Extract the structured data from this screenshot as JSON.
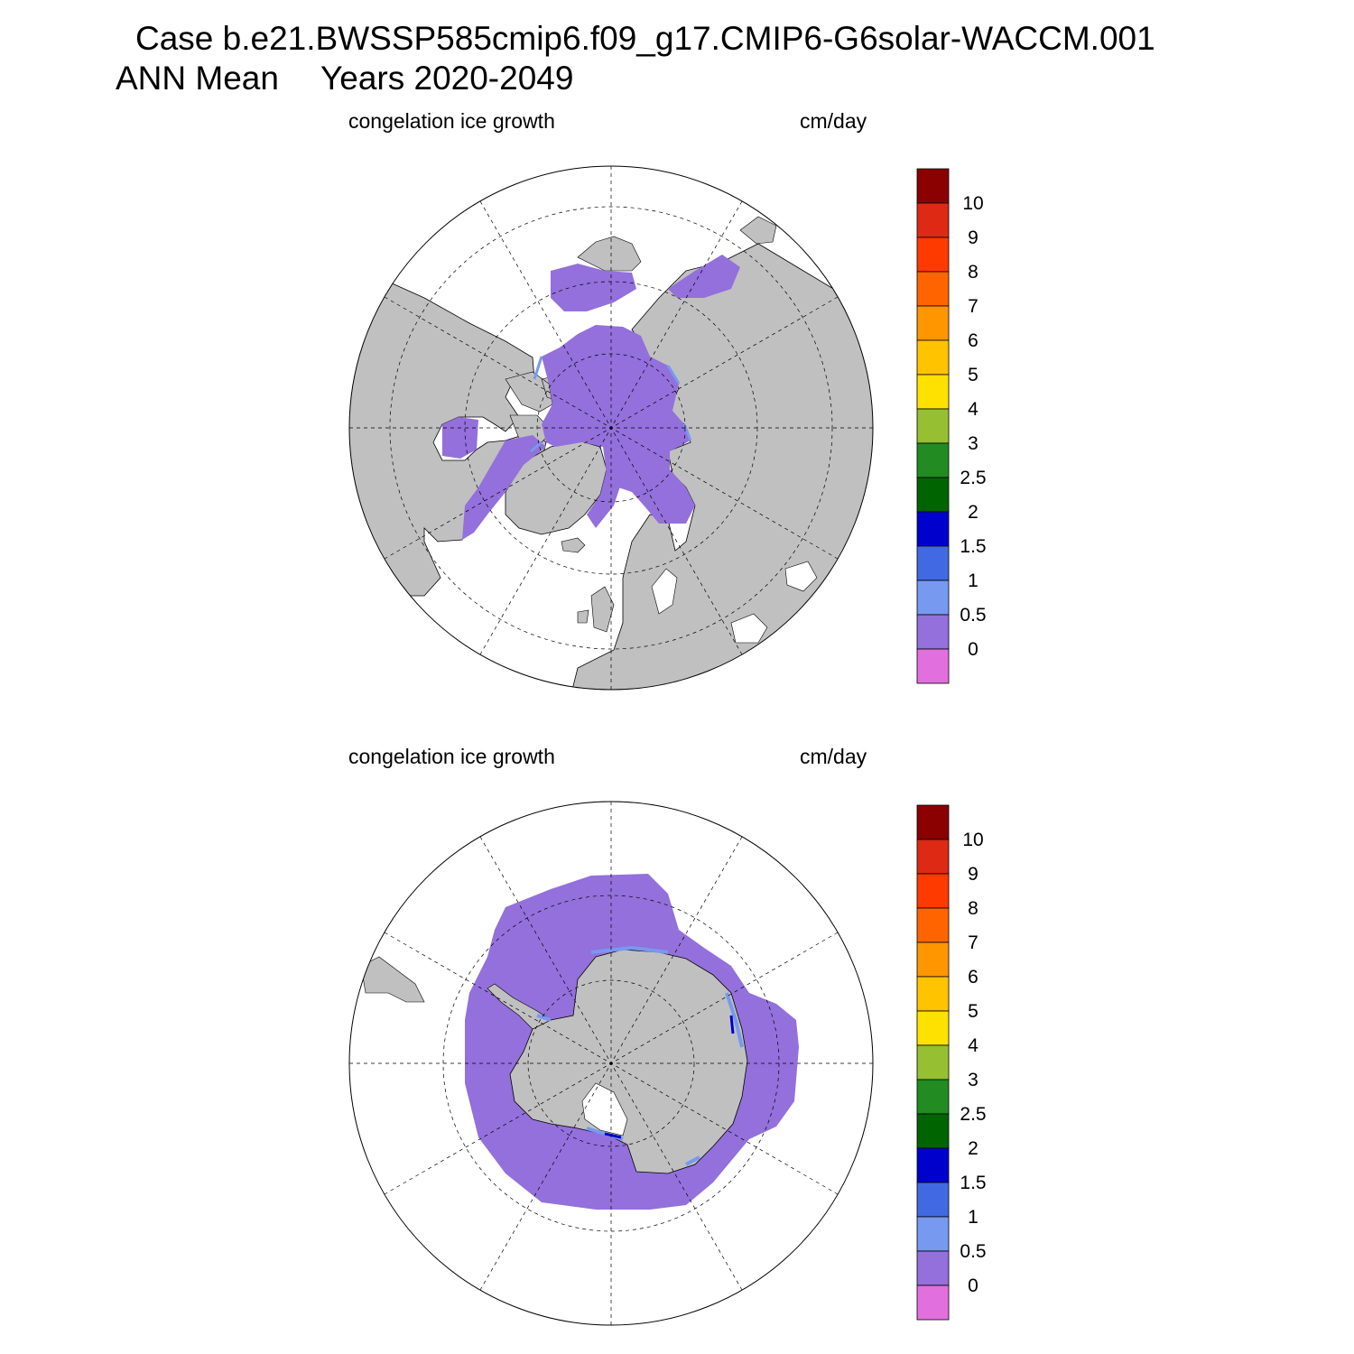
{
  "title": {
    "line1": "Case b.e21.BWSSP585cmip6.f09_g17.CMIP6-G6solar-WACCM.001",
    "season": "ANN Mean",
    "years": "Years 2020-2049"
  },
  "panels": [
    {
      "name": "north",
      "hemisphere": "Northern Hemisphere polar stereographic",
      "variable": "congelation ice growth",
      "units": "cm/day"
    },
    {
      "name": "south",
      "hemisphere": "Southern Hemisphere polar stereographic",
      "variable": "congelation ice growth",
      "units": "cm/day"
    }
  ],
  "colorbar": {
    "labels": [
      "10",
      "9",
      "8",
      "7",
      "6",
      "5",
      "4",
      "3",
      "2.5",
      "2",
      "1.5",
      "1",
      "0.5",
      "0"
    ],
    "colors_top_to_bottom": [
      "#8b0000",
      "#dc2a14",
      "#ff3a00",
      "#ff6400",
      "#ff9600",
      "#ffc300",
      "#ffe100",
      "#96c031",
      "#228b22",
      "#006400",
      "#0000cd",
      "#4169e1",
      "#7799ef",
      "#9370db",
      "#e26fde"
    ]
  },
  "colors": {
    "land": "#c0c0c0",
    "ocean": "#ffffff",
    "ice_growth_low": "#9370db",
    "ice_edge": "#7799ef",
    "grid_line": "#000000"
  }
}
